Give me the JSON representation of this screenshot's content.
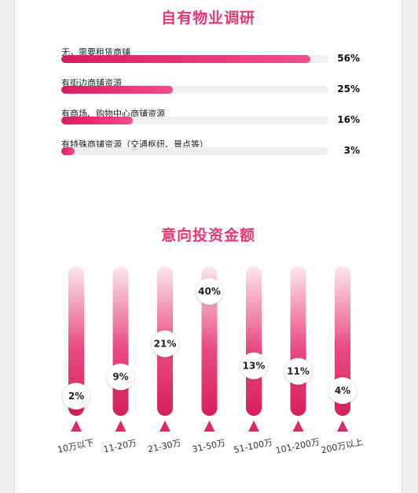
{
  "section1": {
    "title": "自有物业调研",
    "items": [
      {
        "label": "无，需要租赁商铺",
        "percent": 56,
        "percent_label": "56%"
      },
      {
        "label": "有街边商铺资源",
        "percent": 25,
        "percent_label": "25%"
      },
      {
        "label": "有商场、购物中心商铺资源",
        "percent": 16,
        "percent_label": "16%"
      },
      {
        "label": "有特殊商铺资源（交通枢纽、景点等）",
        "percent": 3,
        "percent_label": "3%"
      }
    ]
  },
  "section2": {
    "title": "意向投资金额"
  },
  "chart_data": [
    {
      "type": "bar",
      "orientation": "horizontal",
      "title": "自有物业调研",
      "categories": [
        "无，需要租赁商铺",
        "有街边商铺资源",
        "有商场、购物中心商铺资源",
        "有特殊商铺资源（交通枢纽、景点等）"
      ],
      "values": [
        56,
        25,
        16,
        3
      ],
      "value_labels": [
        "56%",
        "25%",
        "16%",
        "3%"
      ],
      "xlim": [
        0,
        60
      ]
    },
    {
      "type": "bar",
      "title": "意向投资金额",
      "categories": [
        "10万以下",
        "11-20万",
        "21-30万",
        "31-50万",
        "51-100万",
        "101-200万",
        "200万以上"
      ],
      "values": [
        2,
        9,
        21,
        40,
        13,
        11,
        4
      ],
      "value_labels": [
        "2%",
        "9%",
        "21%",
        "40%",
        "13%",
        "11%",
        "4%"
      ],
      "ylim": [
        0,
        40
      ],
      "colors": {
        "bar": "#dc2a67",
        "bar_fade": "#fbe3ec",
        "marker": "#dc2a67",
        "title": "#e33b75"
      }
    }
  ]
}
